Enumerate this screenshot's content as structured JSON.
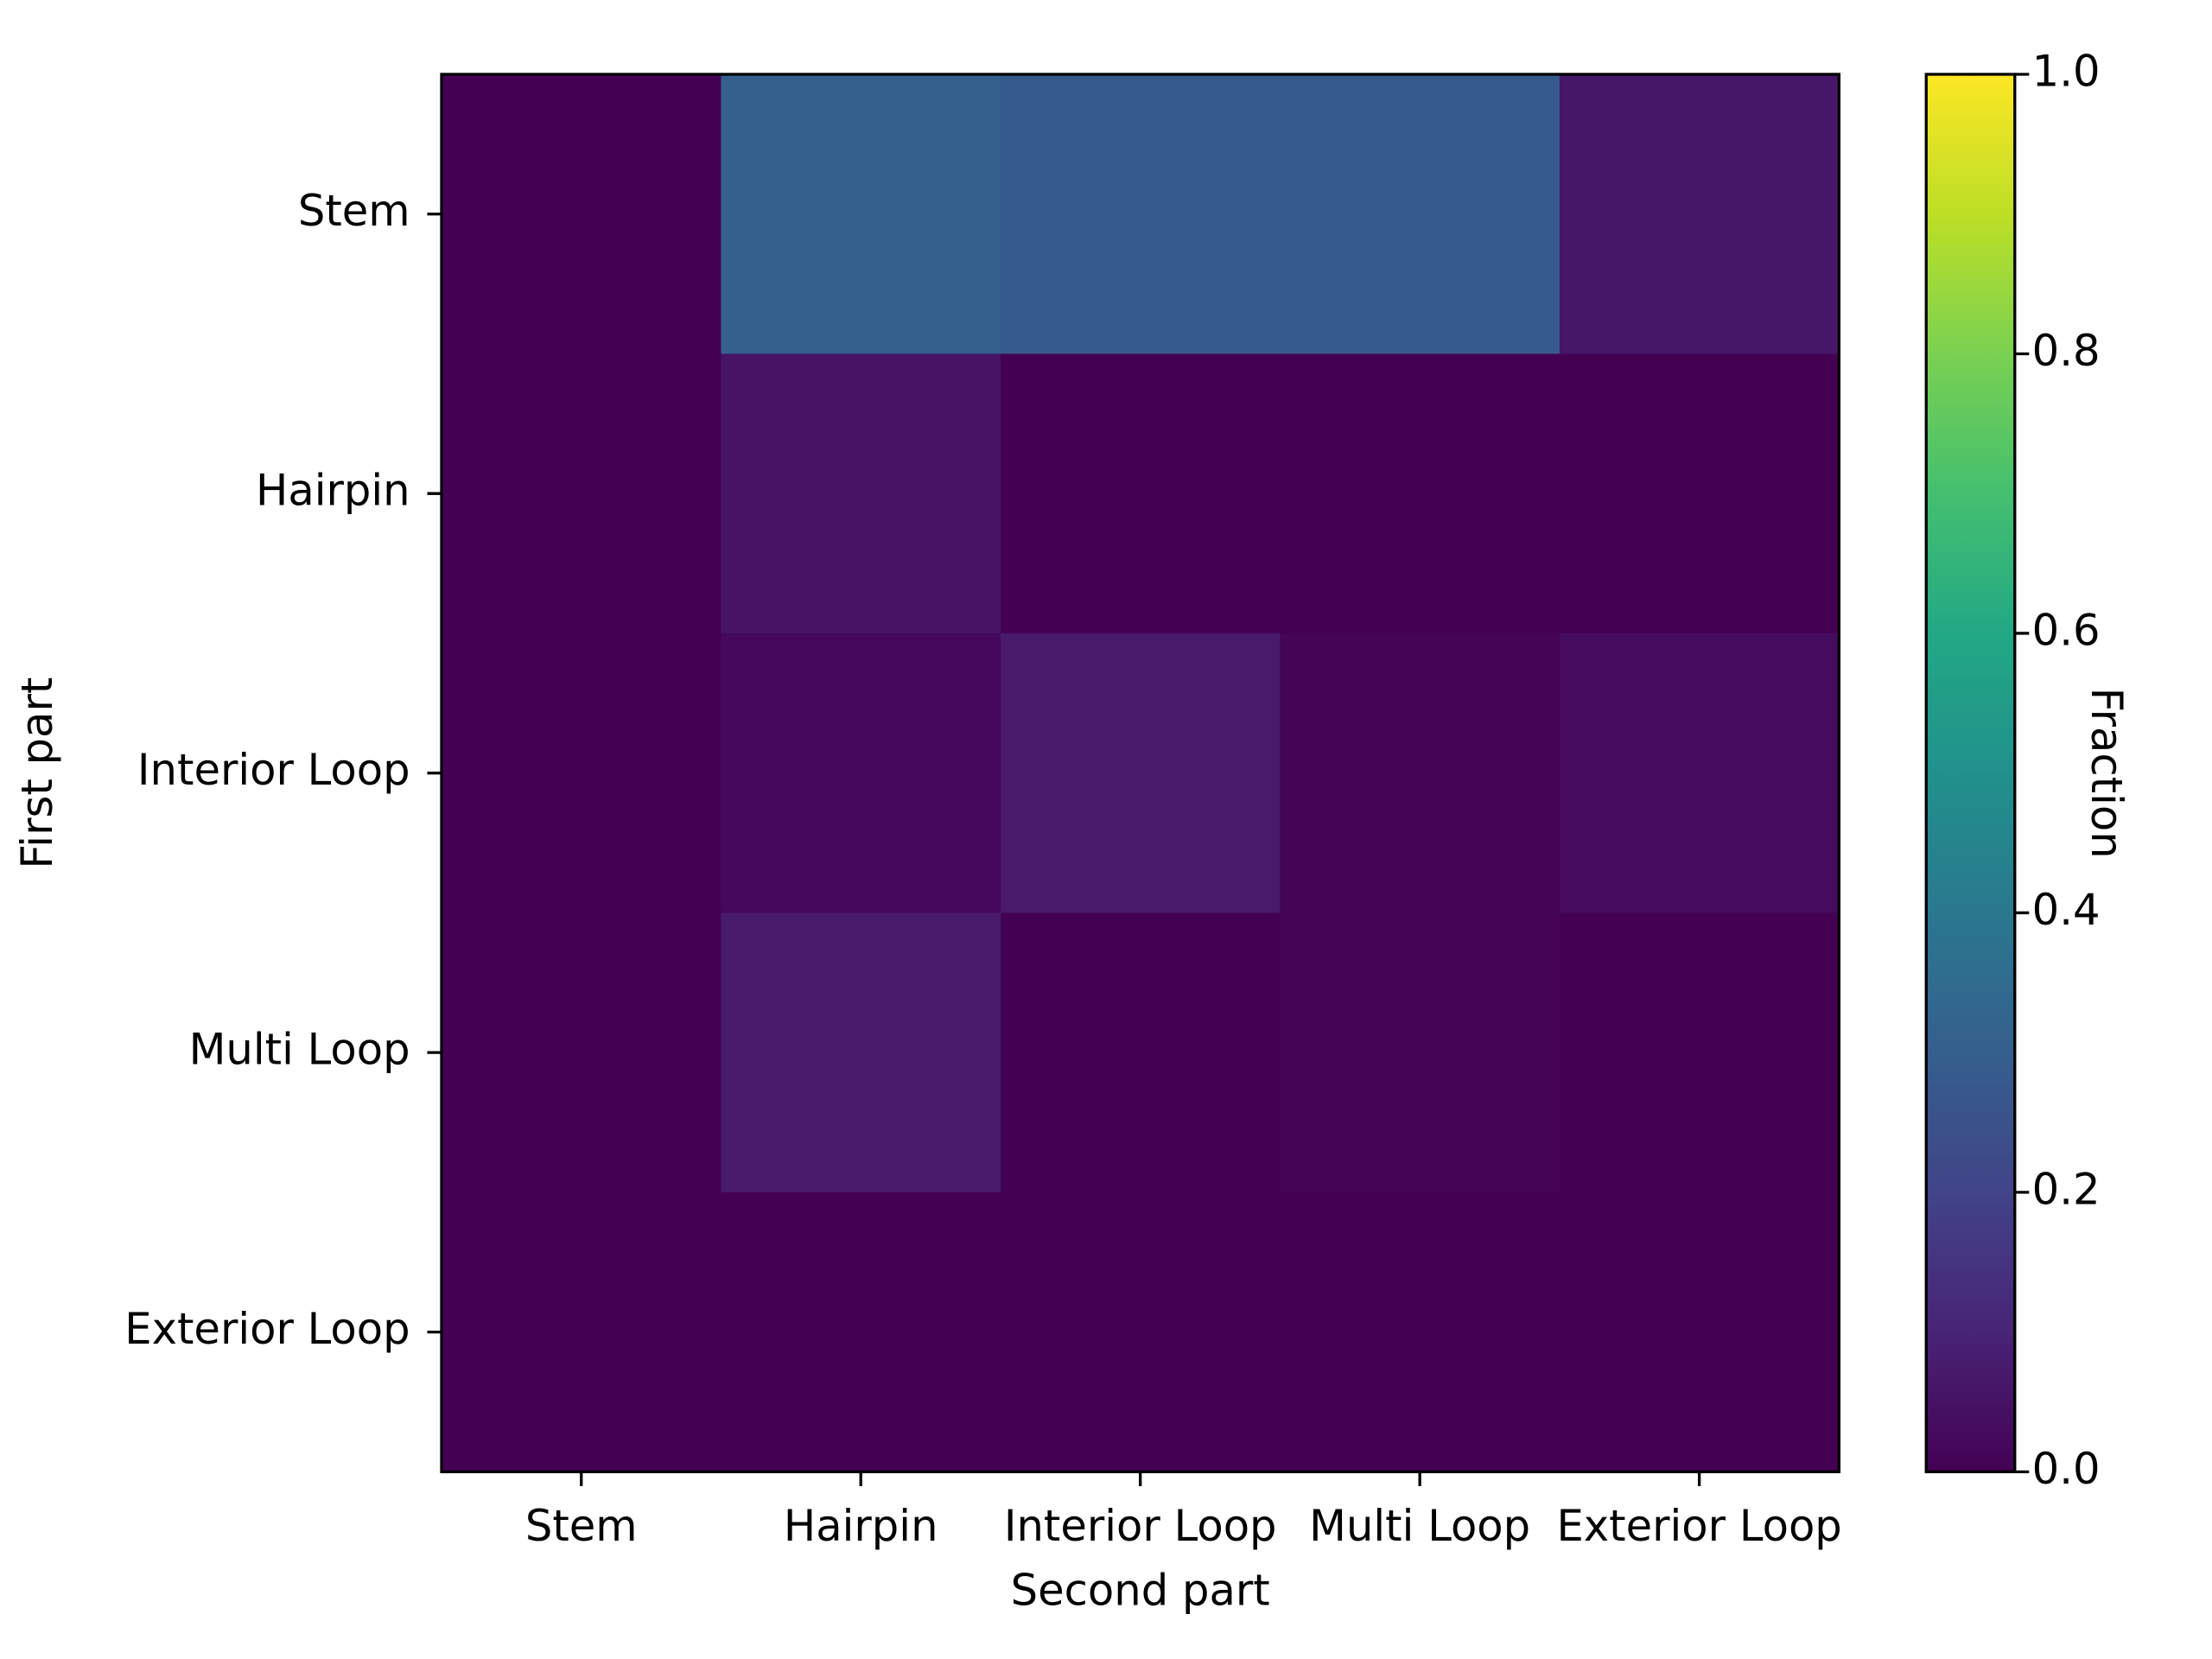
{
  "chart_data": {
    "type": "heatmap",
    "x_label": "Second part",
    "y_label": "First part",
    "x_categories": [
      "Stem",
      "Hairpin",
      "Interior Loop",
      "Multi Loop",
      "Exterior Loop"
    ],
    "y_categories": [
      "Stem",
      "Hairpin",
      "Interior Loop",
      "Multi Loop",
      "Exterior Loop"
    ],
    "values": [
      [
        0,
        0.3,
        0.28,
        0.28,
        0.06
      ],
      [
        0,
        0.05,
        0,
        0,
        0
      ],
      [
        0,
        0.02,
        0.07,
        0.01,
        0.03
      ],
      [
        0,
        0.07,
        0,
        0.01,
        0
      ],
      [
        0,
        0,
        0,
        0,
        0
      ]
    ],
    "colormap": "viridis",
    "colorbar_label": "Fraction",
    "clim": [
      0,
      1
    ],
    "cticks": [
      {
        "value": 0,
        "label": "0.0"
      },
      {
        "value": 0.2,
        "label": "0.2"
      },
      {
        "value": 0.4,
        "label": "0.4"
      },
      {
        "value": 0.6,
        "label": "0.6"
      },
      {
        "value": 0.8,
        "label": "0.8"
      },
      {
        "value": 1,
        "label": "1.0"
      }
    ]
  }
}
